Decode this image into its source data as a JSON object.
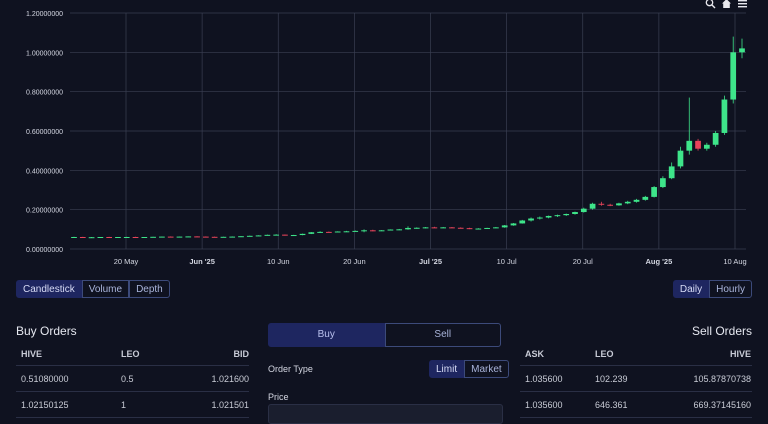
{
  "toolbar": {
    "icons": [
      "zoom-icon",
      "home-icon",
      "menu-icon"
    ]
  },
  "chart_data": {
    "type": "candlestick",
    "y_ticks": [
      "1.20000000",
      "1.00000000",
      "0.80000000",
      "0.60000000",
      "0.40000000",
      "0.20000000",
      "0.00000000"
    ],
    "ylim": [
      0,
      1.2
    ],
    "x_ticks": [
      {
        "label": "20 May",
        "bold": false
      },
      {
        "label": "Jun '25",
        "bold": true
      },
      {
        "label": "10 Jun",
        "bold": false
      },
      {
        "label": "20 Jun",
        "bold": false
      },
      {
        "label": "Jul '25",
        "bold": true
      },
      {
        "label": "10 Jul",
        "bold": false
      },
      {
        "label": "20 Jul",
        "bold": false
      },
      {
        "label": "Aug '25",
        "bold": true
      },
      {
        "label": "10 Aug",
        "bold": false
      }
    ],
    "up_color": "#3ee58a",
    "down_color": "#e8445a",
    "candles": [
      [
        0.06,
        0.062,
        0.058,
        0.061
      ],
      [
        0.061,
        0.062,
        0.059,
        0.06
      ],
      [
        0.06,
        0.061,
        0.058,
        0.06
      ],
      [
        0.06,
        0.061,
        0.059,
        0.061
      ],
      [
        0.061,
        0.062,
        0.059,
        0.06
      ],
      [
        0.06,
        0.061,
        0.059,
        0.061
      ],
      [
        0.061,
        0.062,
        0.06,
        0.061
      ],
      [
        0.061,
        0.062,
        0.06,
        0.06
      ],
      [
        0.06,
        0.061,
        0.059,
        0.061
      ],
      [
        0.061,
        0.062,
        0.06,
        0.062
      ],
      [
        0.062,
        0.063,
        0.06,
        0.063
      ],
      [
        0.063,
        0.064,
        0.061,
        0.062
      ],
      [
        0.062,
        0.063,
        0.061,
        0.063
      ],
      [
        0.063,
        0.064,
        0.062,
        0.064
      ],
      [
        0.064,
        0.065,
        0.062,
        0.063
      ],
      [
        0.063,
        0.064,
        0.061,
        0.062
      ],
      [
        0.062,
        0.063,
        0.06,
        0.061
      ],
      [
        0.061,
        0.062,
        0.06,
        0.062
      ],
      [
        0.062,
        0.064,
        0.061,
        0.063
      ],
      [
        0.063,
        0.065,
        0.062,
        0.065
      ],
      [
        0.065,
        0.068,
        0.064,
        0.067
      ],
      [
        0.067,
        0.07,
        0.066,
        0.069
      ],
      [
        0.069,
        0.073,
        0.068,
        0.072
      ],
      [
        0.072,
        0.075,
        0.07,
        0.073
      ],
      [
        0.073,
        0.074,
        0.068,
        0.07
      ],
      [
        0.07,
        0.072,
        0.068,
        0.071
      ],
      [
        0.071,
        0.078,
        0.07,
        0.077
      ],
      [
        0.077,
        0.086,
        0.076,
        0.085
      ],
      [
        0.085,
        0.09,
        0.082,
        0.087
      ],
      [
        0.087,
        0.089,
        0.084,
        0.086
      ],
      [
        0.086,
        0.09,
        0.085,
        0.089
      ],
      [
        0.089,
        0.092,
        0.088,
        0.09
      ],
      [
        0.09,
        0.094,
        0.089,
        0.092
      ],
      [
        0.092,
        0.1,
        0.085,
        0.095
      ],
      [
        0.095,
        0.098,
        0.09,
        0.093
      ],
      [
        0.093,
        0.096,
        0.091,
        0.095
      ],
      [
        0.095,
        0.1,
        0.094,
        0.099
      ],
      [
        0.099,
        0.102,
        0.096,
        0.1
      ],
      [
        0.1,
        0.115,
        0.098,
        0.107
      ],
      [
        0.107,
        0.11,
        0.103,
        0.108
      ],
      [
        0.108,
        0.112,
        0.105,
        0.11
      ],
      [
        0.11,
        0.113,
        0.107,
        0.109
      ],
      [
        0.109,
        0.112,
        0.106,
        0.11
      ],
      [
        0.11,
        0.112,
        0.107,
        0.108
      ],
      [
        0.108,
        0.11,
        0.104,
        0.106
      ],
      [
        0.106,
        0.108,
        0.101,
        0.103
      ],
      [
        0.103,
        0.106,
        0.1,
        0.104
      ],
      [
        0.104,
        0.108,
        0.103,
        0.107
      ],
      [
        0.107,
        0.112,
        0.106,
        0.11
      ],
      [
        0.11,
        0.122,
        0.108,
        0.12
      ],
      [
        0.12,
        0.132,
        0.118,
        0.13
      ],
      [
        0.13,
        0.148,
        0.129,
        0.145
      ],
      [
        0.145,
        0.16,
        0.14,
        0.155
      ],
      [
        0.155,
        0.165,
        0.15,
        0.16
      ],
      [
        0.16,
        0.17,
        0.156,
        0.168
      ],
      [
        0.168,
        0.175,
        0.163,
        0.172
      ],
      [
        0.172,
        0.18,
        0.168,
        0.178
      ],
      [
        0.178,
        0.19,
        0.175,
        0.188
      ],
      [
        0.188,
        0.21,
        0.185,
        0.205
      ],
      [
        0.205,
        0.235,
        0.2,
        0.23
      ],
      [
        0.23,
        0.24,
        0.22,
        0.225
      ],
      [
        0.225,
        0.23,
        0.218,
        0.222
      ],
      [
        0.222,
        0.235,
        0.22,
        0.232
      ],
      [
        0.232,
        0.245,
        0.228,
        0.24
      ],
      [
        0.24,
        0.255,
        0.236,
        0.25
      ],
      [
        0.25,
        0.27,
        0.246,
        0.265
      ],
      [
        0.265,
        0.32,
        0.262,
        0.315
      ],
      [
        0.315,
        0.37,
        0.31,
        0.36
      ],
      [
        0.36,
        0.44,
        0.355,
        0.42
      ],
      [
        0.42,
        0.52,
        0.41,
        0.5
      ],
      [
        0.5,
        0.77,
        0.48,
        0.55
      ],
      [
        0.55,
        0.56,
        0.5,
        0.51
      ],
      [
        0.51,
        0.54,
        0.5,
        0.53
      ],
      [
        0.53,
        0.6,
        0.52,
        0.59
      ],
      [
        0.59,
        0.78,
        0.58,
        0.76
      ],
      [
        0.76,
        1.08,
        0.74,
        1.0
      ],
      [
        1.0,
        1.07,
        0.97,
        1.02
      ]
    ]
  },
  "chart_type_buttons": [
    "Candlestick",
    "Volume",
    "Depth"
  ],
  "interval_buttons": [
    "Daily",
    "Hourly"
  ],
  "buy_orders": {
    "title": "Buy Orders",
    "columns": [
      "HIVE",
      "LEO",
      "BID"
    ],
    "rows": [
      [
        "0.51080000",
        "0.5",
        "1.021600"
      ],
      [
        "1.02150125",
        "1",
        "1.021501"
      ]
    ]
  },
  "sell_orders": {
    "title": "Sell Orders",
    "columns": [
      "ASK",
      "LEO",
      "HIVE"
    ],
    "rows": [
      [
        "1.035600",
        "102.239",
        "105.87870738"
      ],
      [
        "1.035600",
        "646.361",
        "669.37145160"
      ]
    ]
  },
  "trade": {
    "buy_label": "Buy",
    "sell_label": "Sell",
    "order_type_label": "Order Type",
    "order_types": [
      "Limit",
      "Market"
    ],
    "price_label": "Price"
  }
}
